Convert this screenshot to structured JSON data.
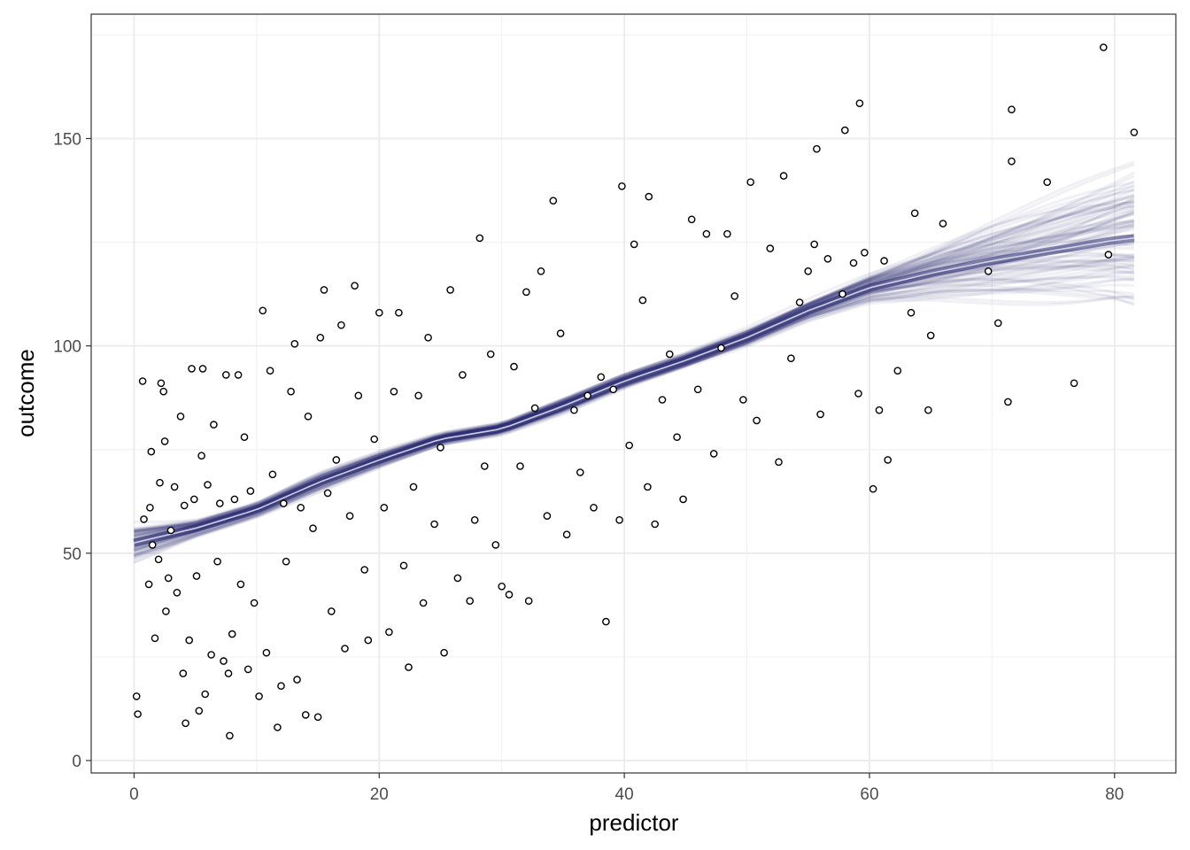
{
  "chart_data": {
    "type": "scatter",
    "title": "",
    "xlabel": "predictor",
    "ylabel": "outcome",
    "xlim": [
      -3.5,
      85
    ],
    "ylim": [
      -3,
      180
    ],
    "x_ticks": [
      0,
      20,
      40,
      60,
      80
    ],
    "y_ticks": [
      0,
      50,
      100,
      150
    ],
    "x_tick_labels": [
      "0",
      "20",
      "40",
      "60",
      "80"
    ],
    "y_tick_labels": [
      "0",
      "50",
      "100",
      "150"
    ],
    "grid": true,
    "theme": "bw",
    "point_style": "open circle, black outline",
    "n_points": 1000,
    "points": [
      [
        0.2,
        15.5
      ],
      [
        0.3,
        11.2
      ],
      [
        0.7,
        91.5
      ],
      [
        0.8,
        58.2
      ],
      [
        1.2,
        42.5
      ],
      [
        1.3,
        61.0
      ],
      [
        1.4,
        74.5
      ],
      [
        1.5,
        52.0
      ],
      [
        1.7,
        29.5
      ],
      [
        2.0,
        48.5
      ],
      [
        2.1,
        67.0
      ],
      [
        2.2,
        91.0
      ],
      [
        2.4,
        89.0
      ],
      [
        2.5,
        77.0
      ],
      [
        2.6,
        36.0
      ],
      [
        2.8,
        44.0
      ],
      [
        3.0,
        55.5
      ],
      [
        3.3,
        66.0
      ],
      [
        3.5,
        40.5
      ],
      [
        3.8,
        83.0
      ],
      [
        4.0,
        21.0
      ],
      [
        4.1,
        61.5
      ],
      [
        4.2,
        9.0
      ],
      [
        4.5,
        29.0
      ],
      [
        4.7,
        94.5
      ],
      [
        4.9,
        63.0
      ],
      [
        5.1,
        44.5
      ],
      [
        5.3,
        12.0
      ],
      [
        5.5,
        73.5
      ],
      [
        5.6,
        94.5
      ],
      [
        5.8,
        16.0
      ],
      [
        6.0,
        66.5
      ],
      [
        6.3,
        25.5
      ],
      [
        6.5,
        81.0
      ],
      [
        6.8,
        48.0
      ],
      [
        7.0,
        62.0
      ],
      [
        7.3,
        24.0
      ],
      [
        7.5,
        93.0
      ],
      [
        7.7,
        21.0
      ],
      [
        7.8,
        6.0
      ],
      [
        8.0,
        30.5
      ],
      [
        8.2,
        63.0
      ],
      [
        8.5,
        93.0
      ],
      [
        8.7,
        42.5
      ],
      [
        9.0,
        78.0
      ],
      [
        9.3,
        22.0
      ],
      [
        9.5,
        65.0
      ],
      [
        9.8,
        38.0
      ],
      [
        10.2,
        15.5
      ],
      [
        10.5,
        108.5
      ],
      [
        10.8,
        26.0
      ],
      [
        11.1,
        94.0
      ],
      [
        11.3,
        69.0
      ],
      [
        11.7,
        8.0
      ],
      [
        12.0,
        18.0
      ],
      [
        12.2,
        62.0
      ],
      [
        12.4,
        48.0
      ],
      [
        12.8,
        89.0
      ],
      [
        13.1,
        100.5
      ],
      [
        13.3,
        19.5
      ],
      [
        13.6,
        61.0
      ],
      [
        14.0,
        11.0
      ],
      [
        14.2,
        83.0
      ],
      [
        14.6,
        56.0
      ],
      [
        15.0,
        10.5
      ],
      [
        15.2,
        102.0
      ],
      [
        15.5,
        113.5
      ],
      [
        15.8,
        64.5
      ],
      [
        16.1,
        36.0
      ],
      [
        16.5,
        72.5
      ],
      [
        16.9,
        105.0
      ],
      [
        17.2,
        27.0
      ],
      [
        17.6,
        59.0
      ],
      [
        18.0,
        114.5
      ],
      [
        18.3,
        88.0
      ],
      [
        18.8,
        46.0
      ],
      [
        19.1,
        29.0
      ],
      [
        19.6,
        77.5
      ],
      [
        20.0,
        108.0
      ],
      [
        20.4,
        61.0
      ],
      [
        20.8,
        31.0
      ],
      [
        21.2,
        89.0
      ],
      [
        21.6,
        108.0
      ],
      [
        22.0,
        47.0
      ],
      [
        22.4,
        22.5
      ],
      [
        22.8,
        66.0
      ],
      [
        23.2,
        88.0
      ],
      [
        23.6,
        38.0
      ],
      [
        24.0,
        102.0
      ],
      [
        24.5,
        57.0
      ],
      [
        25.0,
        75.5
      ],
      [
        25.3,
        26.0
      ],
      [
        25.8,
        113.5
      ],
      [
        26.4,
        44.0
      ],
      [
        26.8,
        93.0
      ],
      [
        27.4,
        38.5
      ],
      [
        27.8,
        58.0
      ],
      [
        28.2,
        126.0
      ],
      [
        28.6,
        71.0
      ],
      [
        29.1,
        98.0
      ],
      [
        29.5,
        52.0
      ],
      [
        30.0,
        42.0
      ],
      [
        30.6,
        40.0
      ],
      [
        31.0,
        95.0
      ],
      [
        31.5,
        71.0
      ],
      [
        32.0,
        113.0
      ],
      [
        32.2,
        38.5
      ],
      [
        32.7,
        85.0
      ],
      [
        33.2,
        118.0
      ],
      [
        33.7,
        59.0
      ],
      [
        34.2,
        135.0
      ],
      [
        34.8,
        103.0
      ],
      [
        35.3,
        54.5
      ],
      [
        35.9,
        84.5
      ],
      [
        36.4,
        69.5
      ],
      [
        37.0,
        88.0
      ],
      [
        37.5,
        61.0
      ],
      [
        38.1,
        92.5
      ],
      [
        38.5,
        33.5
      ],
      [
        39.1,
        89.5
      ],
      [
        39.6,
        58.0
      ],
      [
        39.8,
        138.5
      ],
      [
        40.4,
        76.0
      ],
      [
        40.8,
        124.5
      ],
      [
        41.5,
        111.0
      ],
      [
        41.9,
        66.0
      ],
      [
        42.0,
        136.0
      ],
      [
        42.5,
        57.0
      ],
      [
        43.1,
        87.0
      ],
      [
        43.7,
        98.0
      ],
      [
        44.3,
        78.0
      ],
      [
        44.8,
        63.0
      ],
      [
        45.5,
        130.5
      ],
      [
        46.0,
        89.5
      ],
      [
        46.7,
        127.0
      ],
      [
        47.3,
        74.0
      ],
      [
        47.9,
        99.5
      ],
      [
        48.4,
        127.0
      ],
      [
        49.0,
        112.0
      ],
      [
        49.7,
        87.0
      ],
      [
        50.3,
        139.5
      ],
      [
        50.8,
        82.0
      ],
      [
        51.9,
        123.5
      ],
      [
        52.6,
        72.0
      ],
      [
        53.0,
        141.0
      ],
      [
        53.6,
        97.0
      ],
      [
        54.3,
        110.5
      ],
      [
        55.0,
        118.0
      ],
      [
        55.5,
        124.5
      ],
      [
        55.7,
        147.5
      ],
      [
        56.0,
        83.5
      ],
      [
        56.6,
        121.0
      ],
      [
        57.8,
        112.5
      ],
      [
        58.0,
        152.0
      ],
      [
        58.7,
        120.0
      ],
      [
        59.1,
        88.5
      ],
      [
        59.2,
        158.5
      ],
      [
        59.6,
        122.5
      ],
      [
        60.3,
        65.5
      ],
      [
        60.8,
        84.5
      ],
      [
        61.2,
        120.5
      ],
      [
        61.5,
        72.5
      ],
      [
        62.3,
        94.0
      ],
      [
        63.4,
        108.0
      ],
      [
        63.7,
        132.0
      ],
      [
        64.8,
        84.5
      ],
      [
        65.0,
        102.5
      ],
      [
        66.0,
        129.5
      ],
      [
        69.7,
        118.0
      ],
      [
        70.5,
        105.5
      ],
      [
        71.3,
        86.5
      ],
      [
        71.6,
        157.0
      ],
      [
        71.6,
        144.5
      ],
      [
        74.5,
        139.5
      ],
      [
        76.7,
        91.0
      ],
      [
        79.1,
        172.0
      ],
      [
        79.5,
        122.0
      ],
      [
        81.6,
        151.5
      ]
    ],
    "fit": {
      "type": "smooth",
      "description": "posterior draws of smooth fit (semi-transparent lines) with mean curve",
      "line_color": "#27276e",
      "mean_line_color": "#dcdcf0",
      "x": [
        0,
        5,
        10,
        15,
        20,
        25,
        30,
        35,
        40,
        45,
        50,
        55,
        60,
        65,
        70,
        75,
        80,
        81.6
      ],
      "y": [
        52.5,
        56.0,
        60.5,
        67.0,
        72.5,
        77.5,
        80.0,
        85.5,
        91.5,
        96.5,
        102.0,
        108.5,
        114.0,
        117.5,
        120.5,
        123.0,
        125.5,
        126.0
      ],
      "band_upper": [
        58,
        59,
        63,
        70,
        75,
        79.5,
        82,
        88,
        94,
        99,
        105,
        112,
        119,
        126,
        133,
        140,
        147,
        150
      ],
      "band_lower": [
        45,
        53,
        58,
        64,
        70,
        75.5,
        78,
        83,
        89,
        94,
        99,
        105,
        109,
        109,
        108,
        107,
        106,
        105
      ]
    }
  }
}
